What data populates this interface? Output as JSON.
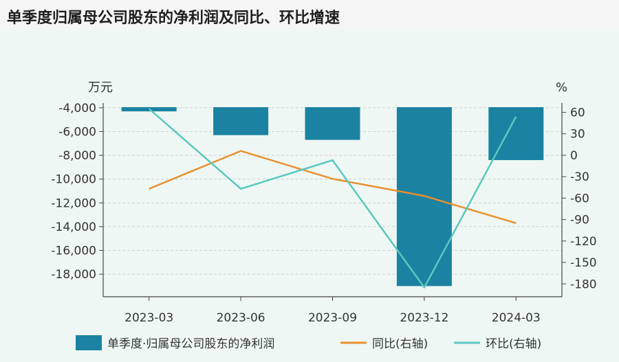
{
  "page_title": "单季度归属母公司股东的净利润及同比、环比增速",
  "chart_data": {
    "type": "bar",
    "categories": [
      "2023-03",
      "2023-06",
      "2023-09",
      "2023-12",
      "2024-03"
    ],
    "series": [
      {
        "name": "单季度·归属母公司股东的净利润",
        "type": "bar",
        "axis": "left",
        "color": "#1b82a2",
        "values": [
          -4300,
          -6300,
          -6700,
          -19000,
          -8400
        ]
      },
      {
        "name": "同比(右轴)",
        "type": "line",
        "axis": "right",
        "color": "#e8902e",
        "values": [
          -47,
          6,
          -33,
          -57,
          -95
        ]
      },
      {
        "name": "环比(右轴)",
        "type": "line",
        "axis": "right",
        "color": "#5ac8c0",
        "values": [
          65,
          -47,
          -7,
          -185,
          54
        ]
      }
    ],
    "left_axis": {
      "unit": "万元",
      "ticks": [
        "-4,000",
        "-6,000",
        "-8,000",
        "-10,000",
        "-12,000",
        "-14,000",
        "-16,000",
        "-18,000"
      ],
      "tick_values": [
        -4000,
        -6000,
        -8000,
        -10000,
        -12000,
        -14000,
        -16000,
        -18000
      ],
      "range": [
        -3600,
        -19900
      ]
    },
    "right_axis": {
      "unit": "%",
      "ticks": [
        "60",
        "30",
        "0",
        "-30",
        "-60",
        "-90",
        "-120",
        "-150",
        "-180"
      ],
      "tick_values": [
        60,
        30,
        0,
        -30,
        -60,
        -90,
        -120,
        -150,
        -180
      ],
      "range": [
        73,
        -198
      ]
    },
    "grid": true,
    "legend_position": "bottom"
  }
}
